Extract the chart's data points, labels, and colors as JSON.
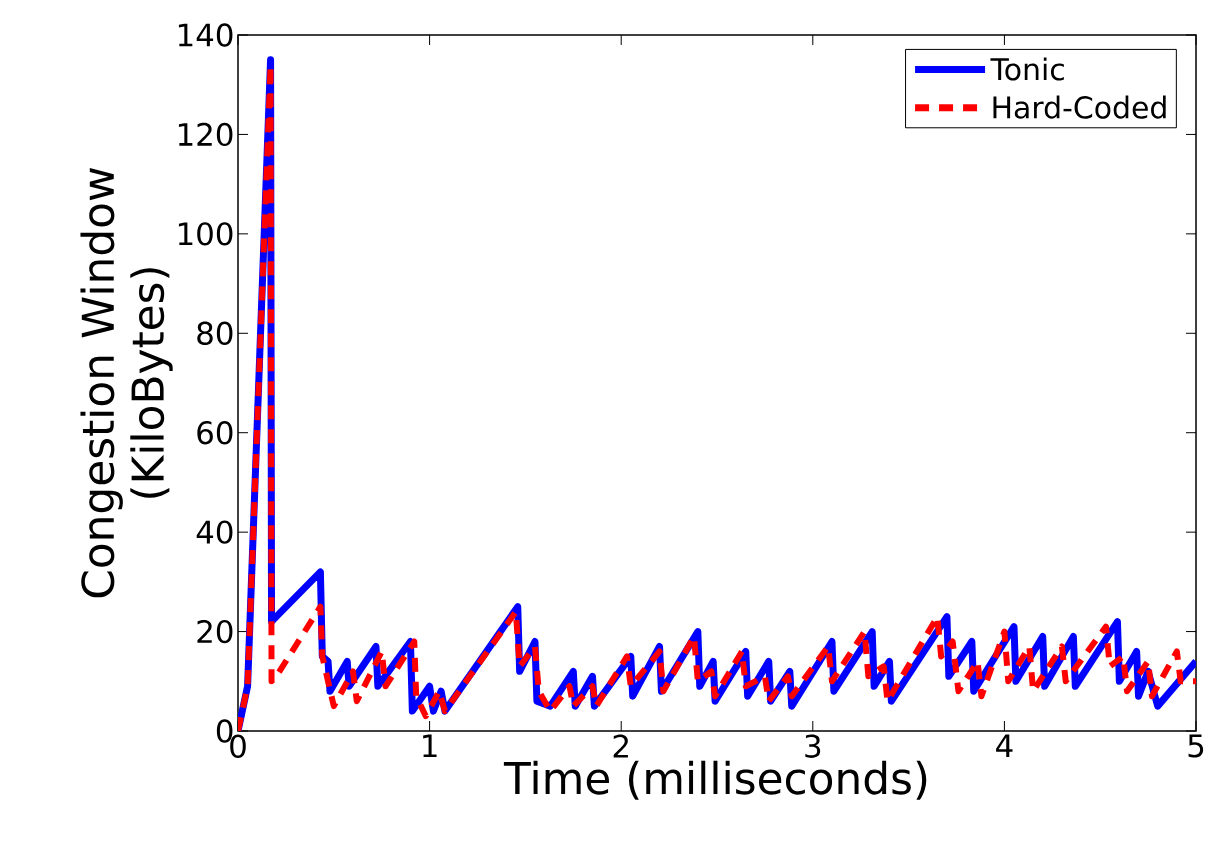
{
  "chart_data": {
    "type": "line",
    "xlabel": "Time (milliseconds)",
    "ylabel": "Congestion Window\n(KiloBytes)",
    "xlim": [
      0,
      5
    ],
    "ylim": [
      0,
      140
    ],
    "xticks": [
      0,
      1,
      2,
      3,
      4,
      5
    ],
    "yticks": [
      0,
      20,
      40,
      60,
      80,
      100,
      120,
      140
    ],
    "grid": false,
    "legend": "top right",
    "marker": "none",
    "series": [
      {
        "name": "Tonic",
        "color": "#0000ff",
        "line_style": "solid",
        "x": [
          0,
          0.05,
          0.17,
          0.175,
          0.2,
          0.43,
          0.44,
          0.47,
          0.48,
          0.57,
          0.58,
          0.72,
          0.73,
          0.9,
          0.91,
          1.0,
          1.02,
          1.06,
          1.08,
          1.46,
          1.47,
          1.55,
          1.56,
          1.63,
          1.75,
          1.76,
          1.85,
          1.86,
          2.05,
          2.06,
          2.2,
          2.21,
          2.4,
          2.41,
          2.48,
          2.49,
          2.65,
          2.66,
          2.77,
          2.78,
          2.88,
          2.89,
          3.1,
          3.11,
          3.31,
          3.32,
          3.4,
          3.41,
          3.7,
          3.71,
          3.83,
          3.84,
          4.05,
          4.06,
          4.2,
          4.21,
          4.36,
          4.37,
          4.59,
          4.6,
          4.69,
          4.7,
          4.75,
          4.8,
          5
        ],
        "values": [
          0,
          9,
          135,
          22,
          23,
          32,
          15,
          14,
          8,
          14,
          9,
          17,
          9,
          18,
          4,
          9,
          4,
          8,
          4,
          25,
          12,
          18,
          6,
          5,
          12,
          5,
          11,
          5,
          15,
          7,
          17,
          8,
          20,
          9,
          14,
          6,
          16,
          7,
          14,
          6,
          12,
          5,
          18,
          8,
          20,
          9,
          14,
          6,
          23,
          11,
          18,
          8,
          21,
          10,
          19,
          9,
          19,
          9,
          22,
          10,
          16,
          7,
          12,
          5,
          14
        ]
      },
      {
        "name": "Hard-Coded",
        "color": "#ff0000",
        "line_style": "dashed",
        "x": [
          0,
          0.05,
          0.17,
          0.175,
          0.2,
          0.43,
          0.44,
          0.5,
          0.6,
          0.62,
          0.75,
          0.77,
          0.92,
          0.93,
          0.98,
          1.05,
          1.08,
          1.45,
          1.47,
          1.55,
          1.57,
          1.63,
          1.73,
          1.75,
          1.85,
          1.87,
          2.03,
          2.05,
          2.2,
          2.22,
          2.38,
          2.4,
          2.47,
          2.49,
          2.63,
          2.65,
          2.75,
          2.77,
          2.87,
          2.89,
          3.08,
          3.1,
          3.27,
          3.29,
          3.37,
          3.39,
          3.65,
          3.67,
          3.73,
          3.76,
          3.86,
          3.88,
          4.0,
          4.02,
          4.13,
          4.15,
          4.3,
          4.32,
          4.53,
          4.55,
          4.62,
          4.64,
          4.75,
          4.77,
          4.9,
          4.92,
          5
        ],
        "values": [
          0,
          9,
          134,
          10,
          11,
          25,
          15,
          5,
          12,
          6,
          16,
          9,
          18,
          7,
          3,
          8,
          4,
          24,
          13,
          17,
          8,
          4,
          9,
          5,
          9,
          5,
          15,
          9,
          16,
          8,
          19,
          10,
          12,
          7,
          16,
          9,
          11,
          6,
          11,
          7,
          17,
          10,
          20,
          11,
          13,
          6,
          23,
          15,
          18,
          8,
          14,
          7,
          20,
          10,
          17,
          8,
          17,
          10,
          21,
          13,
          15,
          8,
          14,
          7,
          16,
          10,
          10
        ]
      }
    ]
  }
}
